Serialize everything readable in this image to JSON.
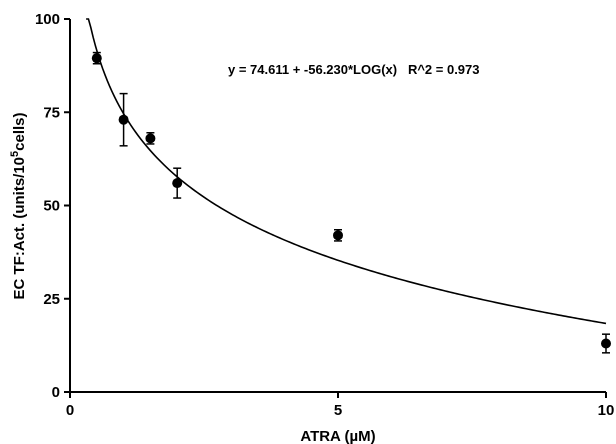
{
  "chart_data": {
    "type": "scatter",
    "xlabel": "ATRA (µM)",
    "ylabel_main": "EC TF:Act. (units/10",
    "ylabel_sup": "5",
    "ylabel_end": "cells)",
    "xlim": [
      0,
      10
    ],
    "ylim": [
      0,
      100
    ],
    "x_ticks": [
      0,
      5,
      10
    ],
    "y_ticks": [
      0,
      25,
      50,
      75,
      100
    ],
    "grid": false,
    "annotation": "y = 74.611 + -56.230*LOG(x)   R^2 = 0.973",
    "fit": {
      "intercept": 74.611,
      "slope": -56.23,
      "form": "log10",
      "x_range": [
        0.3,
        10
      ]
    },
    "points": [
      {
        "x": 0.5,
        "y": 89.5,
        "err": 1.5
      },
      {
        "x": 1.0,
        "y": 73.0,
        "err": 7.0
      },
      {
        "x": 1.5,
        "y": 68.0,
        "err": 1.5
      },
      {
        "x": 2.0,
        "y": 56.0,
        "err": 4.0
      },
      {
        "x": 5.0,
        "y": 42.0,
        "err": 1.5
      },
      {
        "x": 10.0,
        "y": 13.0,
        "err": 2.5
      }
    ]
  }
}
